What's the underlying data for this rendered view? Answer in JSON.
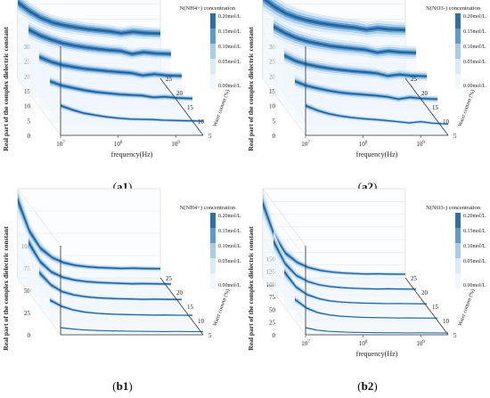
{
  "colors": {
    "ribbon_dark": "#2d6fa8",
    "ribbon_mid": "#5d9bd0",
    "ribbon_light": "#a9cde9",
    "ribbon_pale": "#dbeaf7",
    "wall": "#eef5fc",
    "axis": "#333333",
    "grid": "#c9c9c9"
  },
  "legend_scale": [
    "0.20mol/L",
    "0.15mol/L",
    "0.10mol/L",
    "0.05mol/L",
    "0.00mol/L"
  ],
  "chart_data": [
    {
      "panel_label": "a1",
      "type": "line",
      "view": "3d-ribbons",
      "title": "N(NH4+) concentration",
      "xlabel": "frequency(Hz)",
      "ylabel": "Real part of the complex dielectric constant",
      "zlabel": "Water content (%)",
      "x_scale": "log",
      "xlim": [
        10000000.0,
        3000000000.0
      ],
      "x_ticks": [
        "10^7",
        "10^8",
        "10^9"
      ],
      "ylim": [
        0,
        30
      ],
      "y_ticks": [
        "0",
        "5",
        "10",
        "15",
        "20",
        "25",
        "30"
      ],
      "z_ticks": [
        "5",
        "10",
        "15",
        "20",
        "25"
      ],
      "x": [
        10000000.0,
        16000000.0,
        25000000.0,
        40000000.0,
        63000000.0,
        100000000.0,
        160000000.0,
        250000000.0,
        400000000.0,
        630000000.0,
        1000000000.0,
        1600000000.0,
        3000000000.0
      ],
      "series": [
        {
          "water": 5,
          "values": [
            10,
            8.6,
            7.5,
            6.8,
            6.2,
            5.8,
            5.5,
            5.4,
            5.3,
            5.1,
            5.0,
            4.9,
            4.8
          ]
        },
        {
          "water": 10,
          "values": [
            14,
            12.6,
            11.8,
            11.0,
            10.4,
            10.0,
            9.6,
            9.4,
            9.2,
            8.6,
            8.8,
            8.4,
            8.2
          ]
        },
        {
          "water": 15,
          "values": [
            18,
            16.4,
            15.3,
            14.6,
            14.0,
            13.6,
            13.2,
            12.9,
            12.6,
            11.8,
            12.2,
            11.8,
            11.6
          ]
        },
        {
          "water": 20,
          "values": [
            23,
            21.0,
            19.6,
            18.4,
            17.6,
            17.0,
            16.5,
            16.1,
            15.8,
            14.8,
            15.4,
            15.0,
            14.8
          ]
        },
        {
          "water": 25,
          "values": [
            28,
            25.0,
            22.8,
            21.2,
            20.3,
            19.6,
            19.0,
            18.6,
            18.2,
            17.6,
            18.1,
            17.7,
            17.5
          ]
        }
      ],
      "band_spread": [
        0.12,
        0.08,
        0.05,
        0.025
      ]
    },
    {
      "panel_label": "a2",
      "type": "line",
      "view": "3d-ribbons",
      "title": "N(NO3-) concentration",
      "xlabel": "frequency(Hz)",
      "ylabel": "Real part of the complex dielectric constant",
      "zlabel": "Water content (%)",
      "x_scale": "log",
      "xlim": [
        10000000.0,
        3000000000.0
      ],
      "x_ticks": [
        "10^7",
        "10^8",
        "10^9"
      ],
      "ylim": [
        0,
        30
      ],
      "y_ticks": [
        "0",
        "5",
        "10",
        "15",
        "20",
        "25",
        "30"
      ],
      "z_ticks": [
        "5",
        "10",
        "15",
        "20",
        "25"
      ],
      "x": [
        10000000.0,
        16000000.0,
        25000000.0,
        40000000.0,
        63000000.0,
        100000000.0,
        160000000.0,
        250000000.0,
        400000000.0,
        630000000.0,
        1000000000.0,
        1600000000.0,
        3000000000.0
      ],
      "series": [
        {
          "water": 5,
          "values": [
            10,
            8.4,
            7.3,
            6.5,
            6.0,
            5.6,
            5.3,
            5.0,
            4.6,
            4.2,
            4.6,
            4.1,
            3.8
          ]
        },
        {
          "water": 10,
          "values": [
            14,
            12.5,
            11.6,
            10.8,
            10.2,
            9.8,
            9.5,
            9.2,
            8.8,
            8.0,
            8.6,
            8.2,
            8.0
          ]
        },
        {
          "water": 15,
          "values": [
            18.5,
            16.6,
            15.5,
            14.7,
            14.1,
            13.6,
            13.2,
            12.9,
            12.5,
            11.6,
            12.1,
            11.7,
            11.5
          ]
        },
        {
          "water": 20,
          "values": [
            24,
            21.8,
            20.2,
            19.0,
            18.2,
            17.5,
            17.0,
            16.6,
            16.2,
            15.3,
            15.8,
            15.4,
            15.2
          ]
        },
        {
          "water": 25,
          "values": [
            29.5,
            26.5,
            24.3,
            22.8,
            21.8,
            21.0,
            20.4,
            19.9,
            19.5,
            18.8,
            19.3,
            18.9,
            18.7
          ]
        }
      ],
      "band_spread": [
        0.14,
        0.09,
        0.05,
        0.025
      ]
    },
    {
      "panel_label": "b1",
      "type": "line",
      "view": "3d-ribbons",
      "title": "N(NH4+) concentration",
      "xlabel": "",
      "ylabel": "Real part of the complex dielectric constant",
      "zlabel": "Water content (%)",
      "x_scale": "log",
      "xlim": [
        10000000.0,
        3000000000.0
      ],
      "x_ticks": [],
      "ylim": [
        0,
        100
      ],
      "y_ticks": [
        "0",
        "25",
        "50",
        "75",
        "100"
      ],
      "z_ticks": [
        "5",
        "10",
        "15",
        "20",
        "25"
      ],
      "x": [
        10000000.0,
        16000000.0,
        25000000.0,
        40000000.0,
        63000000.0,
        100000000.0,
        160000000.0,
        250000000.0,
        400000000.0,
        630000000.0,
        1000000000.0,
        1600000000.0,
        3000000000.0
      ],
      "series": [
        {
          "water": 5,
          "values": [
            8,
            6.5,
            5.5,
            4.9,
            4.5,
            4.2,
            4.0,
            3.9,
            3.8,
            3.6,
            3.7,
            3.6,
            3.5
          ]
        },
        {
          "water": 10,
          "values": [
            25,
            18,
            14,
            11.5,
            10.2,
            9.4,
            8.9,
            8.6,
            8.4,
            8.1,
            8.2,
            8.0,
            7.9
          ]
        },
        {
          "water": 15,
          "values": [
            42,
            28,
            20.5,
            16.8,
            14.8,
            13.6,
            12.9,
            12.5,
            12.2,
            11.8,
            12.0,
            11.8,
            11.6
          ]
        },
        {
          "water": 20,
          "values": [
            62,
            40,
            28.5,
            22.5,
            19.5,
            17.8,
            16.8,
            16.2,
            15.8,
            15.3,
            15.5,
            15.2,
            15.0
          ]
        },
        {
          "water": 25,
          "values": [
            95,
            60,
            41,
            30.5,
            25.0,
            22.0,
            20.4,
            19.5,
            19.0,
            18.5,
            18.8,
            18.4,
            18.2
          ]
        }
      ],
      "band_spread": [
        0.16,
        0.1,
        0.06,
        0.03
      ]
    },
    {
      "panel_label": "b2",
      "type": "line",
      "view": "3d-ribbons",
      "title": "N(NO3-) concentration",
      "xlabel": "frequency(Hz)",
      "ylabel": "Real part of the complex dielectric constant",
      "zlabel": "Water content (%)",
      "x_scale": "log",
      "xlim": [
        10000000.0,
        3000000000.0
      ],
      "x_ticks": [
        "10^7",
        "10^8",
        "10^9"
      ],
      "ylim": [
        0,
        175
      ],
      "y_ticks": [
        "0",
        "25",
        "50",
        "75",
        "100",
        "125",
        "150"
      ],
      "z_ticks": [
        "5",
        "10",
        "15",
        "20",
        "25"
      ],
      "x": [
        10000000.0,
        16000000.0,
        25000000.0,
        40000000.0,
        63000000.0,
        100000000.0,
        160000000.0,
        250000000.0,
        400000000.0,
        630000000.0,
        1000000000.0,
        1600000000.0,
        3000000000.0
      ],
      "series": [
        {
          "water": 5,
          "values": [
            14,
            9,
            6.8,
            5.6,
            4.9,
            4.5,
            4.2,
            4.0,
            3.9,
            3.7,
            3.8,
            3.6,
            3.5
          ]
        },
        {
          "water": 10,
          "values": [
            45,
            28,
            19,
            14.5,
            12.0,
            10.6,
            9.7,
            9.2,
            8.9,
            8.5,
            8.7,
            8.4,
            8.3
          ]
        },
        {
          "water": 15,
          "values": [
            75,
            45,
            30,
            22,
            17.5,
            15.2,
            14.0,
            13.2,
            12.7,
            12.2,
            12.4,
            12.1,
            11.9
          ]
        },
        {
          "water": 20,
          "values": [
            110,
            66,
            43,
            31,
            24.5,
            21.0,
            19.0,
            17.8,
            17.1,
            16.5,
            16.8,
            16.4,
            16.2
          ]
        },
        {
          "water": 25,
          "values": [
            160,
            96,
            62,
            44,
            34,
            28.5,
            25.3,
            23.4,
            22.3,
            21.4,
            21.8,
            21.3,
            21.0
          ]
        }
      ],
      "band_spread": [
        0.18,
        0.11,
        0.06,
        0.03
      ]
    }
  ]
}
